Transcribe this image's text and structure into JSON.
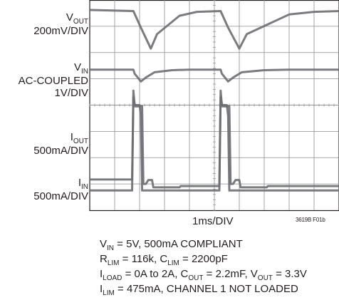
{
  "channels": [
    {
      "name_main": "V",
      "name_sub": "OUT",
      "scale": "200mV/DIV"
    },
    {
      "name_main": "V",
      "name_sub": "IN",
      "mode": "AC-COUPLED",
      "scale": "1V/DIV"
    },
    {
      "name_main": "I",
      "name_sub": "OUT",
      "scale": "500mA/DIV"
    },
    {
      "name_main": "I",
      "name_sub": "IN",
      "scale": "500mA/DIV"
    }
  ],
  "x_axis_label": "1ms/DIV",
  "figure_id": "3619B F01b",
  "conditions": [
    [
      {
        "t": "V"
      },
      {
        "s": "IN"
      },
      {
        "t": " = 5V, 500mA COMPLIANT"
      }
    ],
    [
      {
        "t": "R"
      },
      {
        "s": "LIM"
      },
      {
        "t": " = 116k, C"
      },
      {
        "s": "LIM"
      },
      {
        "t": " = 2200pF"
      }
    ],
    [
      {
        "t": "I"
      },
      {
        "s": "LOAD"
      },
      {
        "t": " = 0A to 2A, C"
      },
      {
        "s": "OUT"
      },
      {
        "t": " = 2.2mF, V"
      },
      {
        "s": "OUT"
      },
      {
        "t": " = 3.3V"
      }
    ],
    [
      {
        "t": "I"
      },
      {
        "s": "LIM"
      },
      {
        "t": " = 475mA, CHANNEL 1 NOT LOADED"
      }
    ]
  ],
  "chart_data": {
    "type": "line",
    "title": "",
    "xlabel": "1ms/DIV",
    "x_unit": "ms",
    "divisions": {
      "x": 10,
      "y": 8
    },
    "grid": true,
    "series": [
      {
        "name": "VOUT",
        "color": "#6d6e71",
        "x": [
          0,
          0.9,
          1.75,
          2.05,
          2.45,
          2.7,
          3.6,
          4.3,
          5.25,
          5.55,
          6.0,
          6.3,
          8.0,
          9.0,
          10.0
        ],
        "y": [
          7.62,
          7.6,
          7.58,
          6.95,
          6.15,
          6.7,
          7.4,
          7.55,
          7.58,
          6.95,
          6.15,
          6.7,
          7.45,
          7.55,
          7.58
        ]
      },
      {
        "name": "VIN",
        "color": "#6d6e71",
        "x": [
          0,
          1.75,
          1.8,
          2.05,
          2.25,
          2.6,
          3.3,
          4.0,
          5.25,
          5.3,
          5.55,
          5.75,
          6.1,
          7.0,
          8.0,
          10.0
        ],
        "y": [
          5.35,
          5.35,
          5.2,
          4.9,
          5.05,
          5.25,
          5.33,
          5.35,
          5.35,
          5.2,
          4.9,
          5.05,
          5.25,
          5.33,
          5.35,
          5.35
        ]
      },
      {
        "name": "IOUT",
        "color": "#6d6e71",
        "x": [
          0,
          1.7,
          1.75,
          1.8,
          2.0,
          2.05,
          2.1,
          5.2,
          5.25,
          5.3,
          5.5,
          5.55,
          5.6,
          10.0
        ],
        "y": [
          0.75,
          0.75,
          4.55,
          4.0,
          4.0,
          3.6,
          0.75,
          0.75,
          4.55,
          4.0,
          4.0,
          3.6,
          0.75,
          0.75
        ]
      },
      {
        "name": "IIN",
        "color": "#6d6e71",
        "x": [
          0,
          1.7,
          1.75,
          1.82,
          2.1,
          2.15,
          2.25,
          2.35,
          2.5,
          2.55,
          3.6,
          3.65,
          5.2,
          5.25,
          5.32,
          5.6,
          5.65,
          5.75,
          5.85,
          6.0,
          6.05,
          7.1,
          7.15,
          10.0
        ],
        "y": [
          1.17,
          1.17,
          4.3,
          3.95,
          3.95,
          1.0,
          1.0,
          1.15,
          1.15,
          0.87,
          0.87,
          0.92,
          0.92,
          4.3,
          3.95,
          3.95,
          1.0,
          1.0,
          1.15,
          1.15,
          0.87,
          0.87,
          0.92,
          0.92
        ]
      }
    ]
  }
}
